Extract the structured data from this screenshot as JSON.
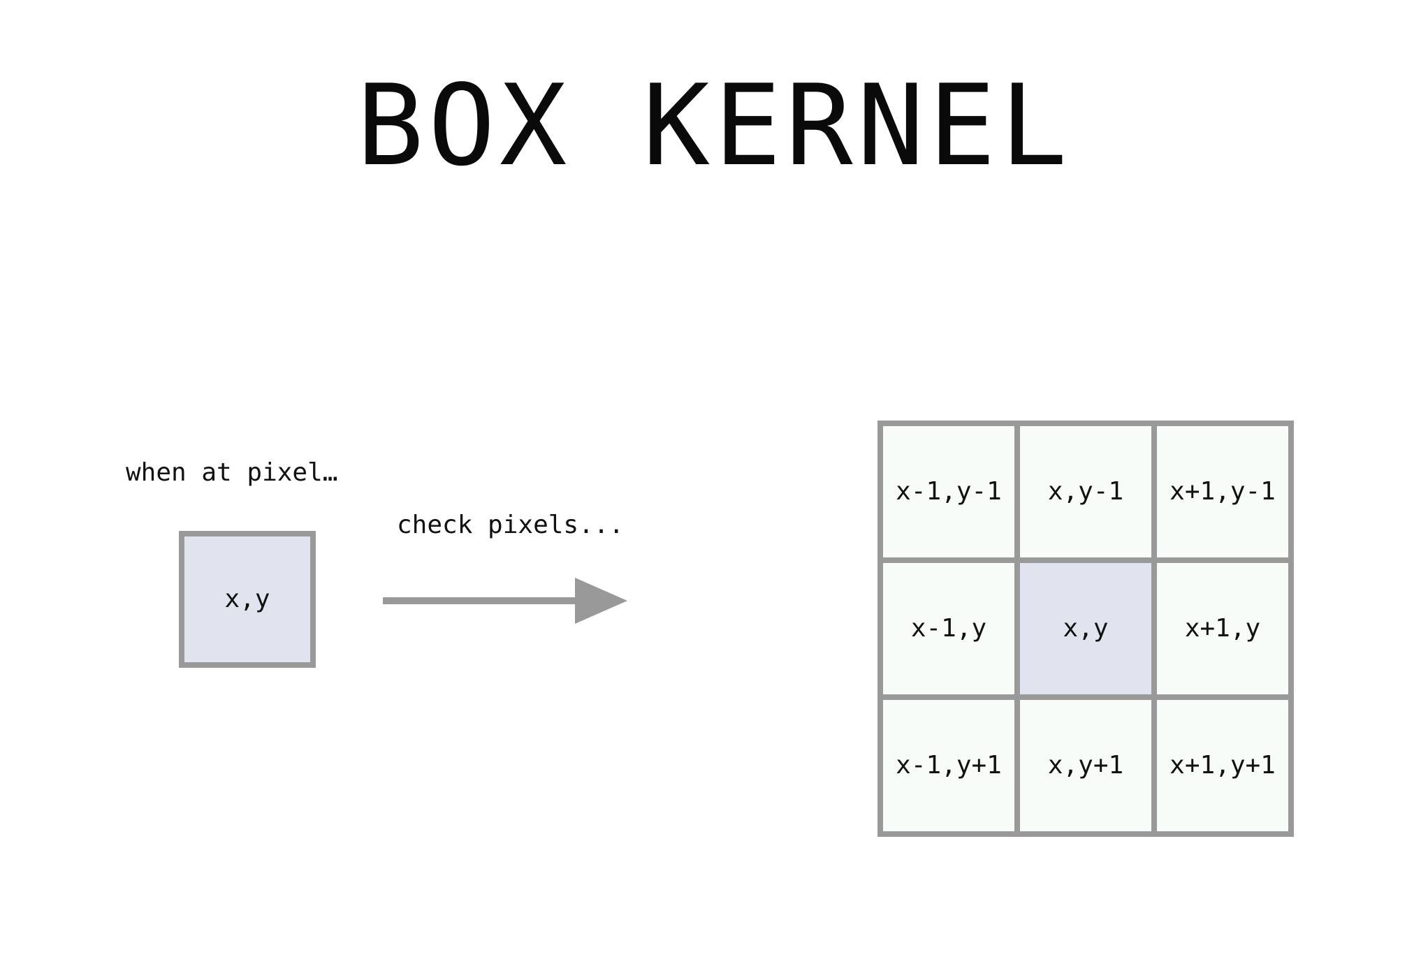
{
  "title": "BOX KERNEL",
  "left_caption": "when at pixel…",
  "arrow_caption": "check pixels...",
  "center_pixel": {
    "label": "x,y"
  },
  "kernel": {
    "cells": [
      {
        "label": "x-1,y-1",
        "highlight": false
      },
      {
        "label": "x,y-1",
        "highlight": false
      },
      {
        "label": "x+1,y-1",
        "highlight": false
      },
      {
        "label": "x-1,y",
        "highlight": false
      },
      {
        "label": "x,y",
        "highlight": true
      },
      {
        "label": "x+1,y",
        "highlight": false
      },
      {
        "label": "x-1,y+1",
        "highlight": false
      },
      {
        "label": "x,y+1",
        "highlight": false
      },
      {
        "label": "x+1,y+1",
        "highlight": false
      }
    ]
  },
  "colors": {
    "border": "#999999",
    "highlight_fill": "#dfe4ef",
    "cell_fill": "#f8fcf8",
    "arrow": "#999999",
    "text": "#111111"
  }
}
